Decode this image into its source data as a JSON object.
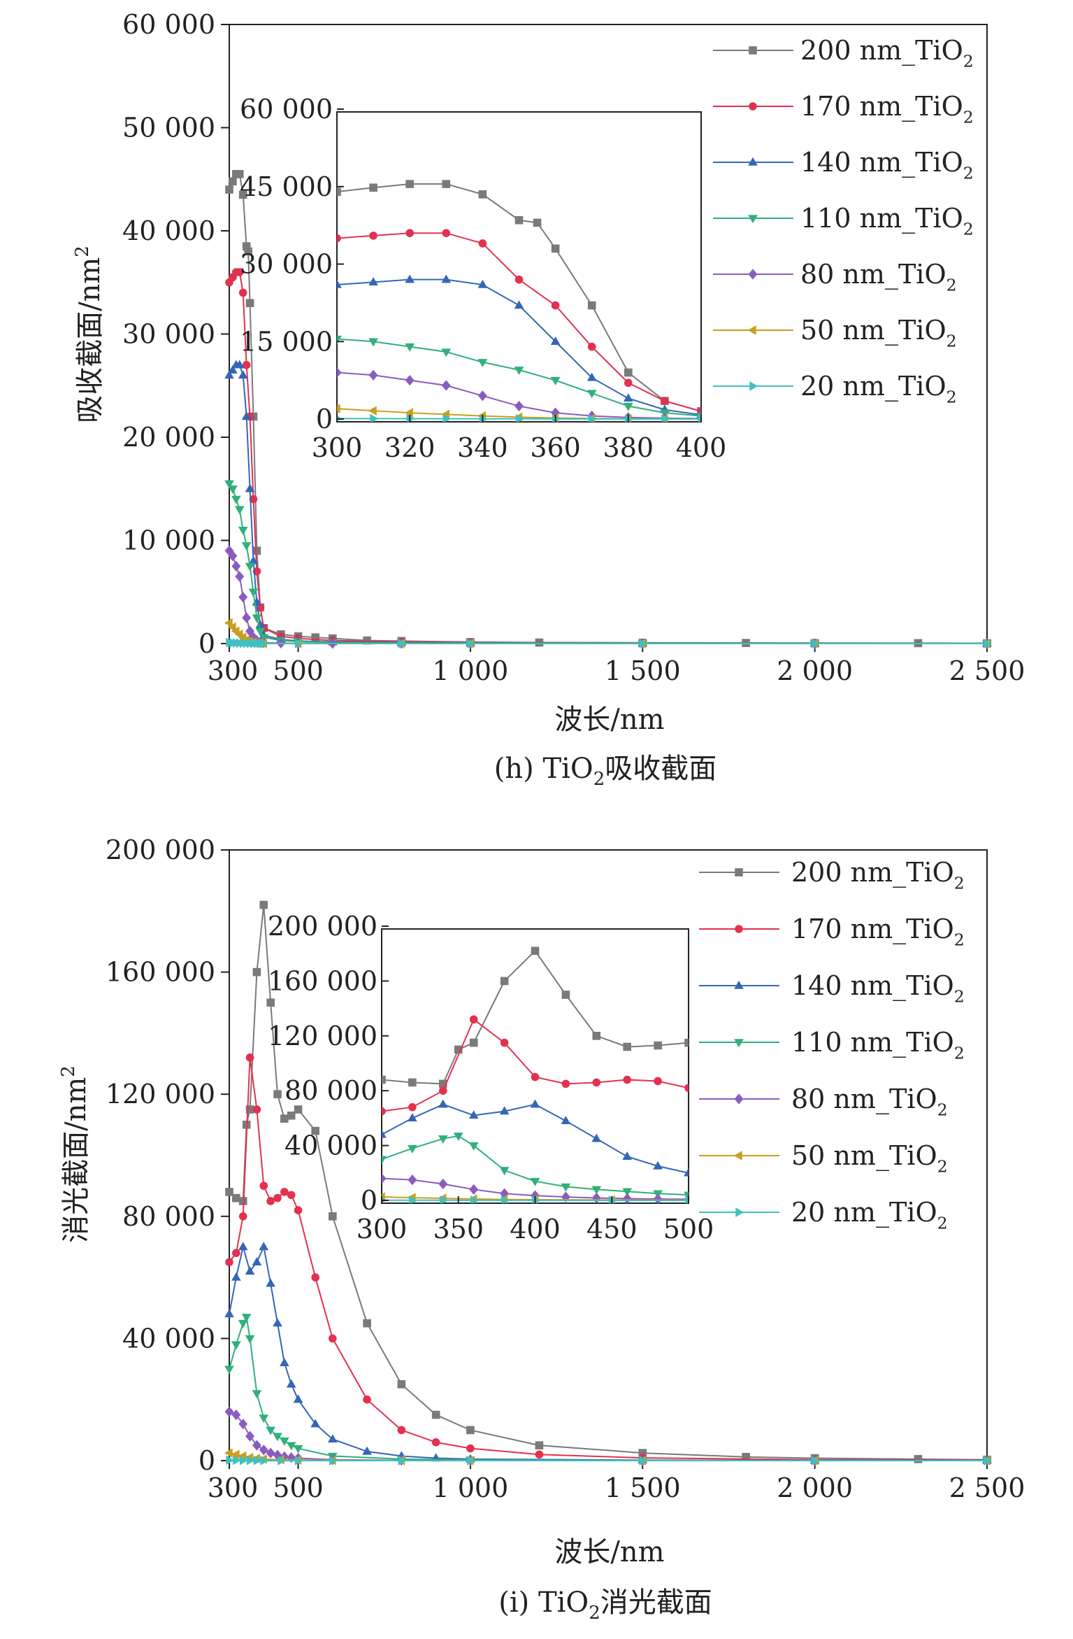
{
  "colors": {
    "200 nm": "#7a7a7a",
    "170 nm": "#e3314f",
    "140 nm": "#3466b8",
    "110 nm": "#30b07a",
    "80 nm": "#8a5cc0",
    "50 nm": "#c8a020",
    "20 nm": "#40c0c0"
  },
  "chart_data": [
    {
      "type": "line",
      "panel": "h",
      "title": "(h) TiO",
      "title_sub": "2",
      "title_suffix": "吸收截面",
      "xlabel": "波长/nm",
      "ylabel": "吸收截面/nm",
      "ylabel_sup": "2",
      "xlim": [
        300,
        2500
      ],
      "ylim": [
        0,
        60000
      ],
      "xticks": [
        300,
        500,
        1000,
        1500,
        2000,
        2500
      ],
      "xtick_labels": [
        "300",
        "500",
        "1 000",
        "1 500",
        "2 000",
        "2 500"
      ],
      "yticks": [
        0,
        10000,
        20000,
        30000,
        40000,
        50000,
        60000
      ],
      "ytick_labels": [
        "0",
        "10 000",
        "20 000",
        "30 000",
        "40 000",
        "50 000",
        "60 000"
      ],
      "legend": [
        "200 nm_TiO2",
        "170 nm_TiO2",
        "140 nm_TiO2",
        "110 nm_TiO2",
        "80 nm_TiO2",
        "50 nm_TiO2",
        "20 nm_TiO2"
      ],
      "legend_labels": [
        {
          "main": "200 nm_TiO",
          "sub": "2"
        },
        {
          "main": "170 nm_TiO",
          "sub": "2"
        },
        {
          "main": "140 nm_TiO",
          "sub": "2"
        },
        {
          "main": "110 nm_TiO",
          "sub": "2"
        },
        {
          "main": "80 nm_TiO",
          "sub": "2"
        },
        {
          "main": "50 nm_TiO",
          "sub": "2"
        },
        {
          "main": "20 nm_TiO",
          "sub": "2"
        }
      ],
      "legend_position": "top-right",
      "series": [
        {
          "name": "200 nm_TiO2",
          "x": [
            300,
            310,
            320,
            330,
            340,
            350,
            355,
            360,
            370,
            380,
            390,
            400,
            450,
            500,
            550,
            600,
            700,
            800,
            1000,
            1200,
            1500,
            1800,
            2000,
            2300,
            2500
          ],
          "y": [
            44000,
            44800,
            45500,
            45500,
            43500,
            38500,
            38000,
            33000,
            22000,
            9000,
            3500,
            1500,
            900,
            700,
            600,
            500,
            300,
            250,
            150,
            100,
            80,
            60,
            50,
            40,
            30
          ]
        },
        {
          "name": "170 nm_TiO2",
          "x": [
            300,
            310,
            320,
            330,
            340,
            350,
            360,
            370,
            380,
            390,
            400,
            450,
            500,
            600,
            800,
            1000,
            1500,
            2000,
            2500
          ],
          "y": [
            35000,
            35500,
            36000,
            36000,
            34000,
            27000,
            22000,
            14000,
            7000,
            3500,
            1500,
            700,
            500,
            300,
            150,
            100,
            60,
            40,
            30
          ]
        },
        {
          "name": "140 nm_TiO2",
          "x": [
            300,
            310,
            320,
            330,
            340,
            350,
            360,
            370,
            380,
            390,
            400,
            450,
            500,
            600,
            800,
            1000,
            1500,
            2000,
            2500
          ],
          "y": [
            26000,
            26500,
            27000,
            27000,
            26000,
            22000,
            15000,
            8000,
            4000,
            1800,
            800,
            400,
            250,
            150,
            80,
            50,
            30,
            20,
            10
          ]
        },
        {
          "name": "110 nm_TiO2",
          "x": [
            300,
            310,
            320,
            330,
            340,
            350,
            360,
            370,
            380,
            390,
            400,
            450,
            500,
            600,
            800,
            1000,
            1500,
            2000,
            2500
          ],
          "y": [
            15500,
            15000,
            14000,
            13000,
            11000,
            9500,
            7500,
            5000,
            2500,
            1200,
            600,
            300,
            200,
            100,
            50,
            30,
            20,
            10,
            5
          ]
        },
        {
          "name": "80 nm_TiO2",
          "x": [
            300,
            310,
            320,
            330,
            340,
            350,
            360,
            370,
            380,
            390,
            400,
            450,
            500,
            600,
            800,
            1000,
            1500,
            2000,
            2500
          ],
          "y": [
            9000,
            8500,
            7500,
            6500,
            4500,
            2500,
            1200,
            600,
            300,
            150,
            80,
            40,
            20,
            10,
            5,
            3,
            2,
            1,
            1
          ]
        },
        {
          "name": "50 nm_TiO2",
          "x": [
            300,
            310,
            320,
            330,
            340,
            350,
            360,
            370,
            380,
            390,
            400,
            500,
            800,
            1000,
            1500,
            2000,
            2500
          ],
          "y": [
            2000,
            1600,
            1200,
            900,
            600,
            350,
            200,
            100,
            50,
            20,
            10,
            5,
            2,
            1,
            1,
            0,
            0
          ]
        },
        {
          "name": "20 nm_TiO2",
          "x": [
            300,
            310,
            320,
            330,
            340,
            350,
            360,
            370,
            380,
            390,
            400,
            500,
            800,
            1000,
            1500,
            2000,
            2500
          ],
          "y": [
            100,
            80,
            60,
            50,
            40,
            30,
            20,
            10,
            5,
            3,
            2,
            1,
            0,
            0,
            0,
            0,
            0
          ]
        }
      ],
      "inset": {
        "xlim": [
          300,
          400
        ],
        "ylim": [
          0,
          60000
        ],
        "xticks": [
          300,
          320,
          340,
          360,
          380,
          400
        ],
        "xtick_labels": [
          "300",
          "320",
          "340",
          "360",
          "380",
          "400"
        ],
        "yticks": [
          0,
          15000,
          30000,
          45000,
          60000
        ],
        "ytick_labels": [
          "0",
          "15 000",
          "30 000",
          "45 000",
          "60 000"
        ]
      }
    },
    {
      "type": "line",
      "panel": "i",
      "title": "(i) TiO",
      "title_sub": "2",
      "title_suffix": "消光截面",
      "xlabel": "波长/nm",
      "ylabel": "消光截面/nm",
      "ylabel_sup": "2",
      "xlim": [
        300,
        2500
      ],
      "ylim": [
        0,
        200000
      ],
      "xticks": [
        300,
        500,
        1000,
        1500,
        2000,
        2500
      ],
      "xtick_labels": [
        "300",
        "500",
        "1 000",
        "1 500",
        "2 000",
        "2 500"
      ],
      "yticks": [
        0,
        40000,
        80000,
        120000,
        160000,
        200000
      ],
      "ytick_labels": [
        "0",
        "40 000",
        "80 000",
        "120 000",
        "160 000",
        "200 000"
      ],
      "legend": [
        "200 nm_TiO2",
        "170 nm_TiO2",
        "140 nm_TiO2",
        "110 nm_TiO2",
        "80 nm_TiO2",
        "50 nm_TiO2",
        "20 nm_TiO2"
      ],
      "legend_labels": [
        {
          "main": "200 nm_TiO",
          "sub": "2"
        },
        {
          "main": "170 nm_TiO",
          "sub": "2"
        },
        {
          "main": "140 nm_TiO",
          "sub": "2"
        },
        {
          "main": "110 nm_TiO",
          "sub": "2"
        },
        {
          "main": "80 nm_TiO",
          "sub": "2"
        },
        {
          "main": "50 nm_TiO",
          "sub": "2"
        },
        {
          "main": "20 nm_TiO",
          "sub": "2"
        }
      ],
      "legend_position": "top-right",
      "series": [
        {
          "name": "200 nm_TiO2",
          "x": [
            300,
            320,
            340,
            350,
            360,
            380,
            400,
            420,
            440,
            460,
            480,
            500,
            550,
            600,
            700,
            800,
            900,
            1000,
            1200,
            1500,
            1800,
            2000,
            2300,
            2500
          ],
          "y": [
            88000,
            86000,
            85000,
            110000,
            115000,
            160000,
            182000,
            150000,
            120000,
            112000,
            113000,
            115000,
            108000,
            80000,
            45000,
            25000,
            15000,
            10000,
            5000,
            2500,
            1200,
            800,
            500,
            300
          ]
        },
        {
          "name": "170 nm_TiO2",
          "x": [
            300,
            320,
            340,
            360,
            380,
            400,
            420,
            440,
            460,
            480,
            500,
            550,
            600,
            700,
            800,
            900,
            1000,
            1200,
            1500,
            2000,
            2500
          ],
          "y": [
            65000,
            68000,
            80000,
            132000,
            115000,
            90000,
            85000,
            86000,
            88000,
            87000,
            82000,
            60000,
            40000,
            20000,
            10000,
            6000,
            4000,
            2000,
            900,
            300,
            150
          ]
        },
        {
          "name": "140 nm_TiO2",
          "x": [
            300,
            320,
            340,
            360,
            380,
            400,
            420,
            440,
            460,
            480,
            500,
            550,
            600,
            700,
            800,
            900,
            1000,
            1500,
            2000,
            2500
          ],
          "y": [
            48000,
            60000,
            70000,
            62000,
            65000,
            70000,
            58000,
            45000,
            32000,
            25000,
            20000,
            12000,
            7000,
            3000,
            1500,
            800,
            500,
            150,
            50,
            20
          ]
        },
        {
          "name": "110 nm_TiO2",
          "x": [
            300,
            320,
            340,
            350,
            360,
            380,
            400,
            420,
            440,
            460,
            480,
            500,
            600,
            800,
            1000,
            1500,
            2000,
            2500
          ],
          "y": [
            30000,
            38000,
            45000,
            47000,
            40000,
            22000,
            14000,
            10000,
            8000,
            6500,
            5000,
            4000,
            1500,
            500,
            200,
            50,
            20,
            10
          ]
        },
        {
          "name": "80 nm_TiO2",
          "x": [
            300,
            320,
            340,
            360,
            380,
            400,
            420,
            440,
            460,
            480,
            500,
            600,
            800,
            1000,
            1500,
            2000,
            2500
          ],
          "y": [
            16000,
            15000,
            12000,
            8000,
            5000,
            3500,
            2500,
            1800,
            1300,
            1000,
            800,
            300,
            100,
            40,
            10,
            5,
            2
          ]
        },
        {
          "name": "50 nm_TiO2",
          "x": [
            300,
            320,
            340,
            360,
            380,
            400,
            450,
            500,
            600,
            800,
            1000,
            1500,
            2000,
            2500
          ],
          "y": [
            2500,
            2000,
            1500,
            1000,
            700,
            500,
            300,
            200,
            80,
            30,
            10,
            5,
            2,
            1
          ]
        },
        {
          "name": "20 nm_TiO2",
          "x": [
            300,
            320,
            340,
            360,
            380,
            400,
            450,
            500,
            600,
            800,
            1000,
            1500,
            2000,
            2500
          ],
          "y": [
            150,
            120,
            100,
            80,
            60,
            40,
            20,
            10,
            5,
            2,
            1,
            0,
            0,
            0
          ]
        }
      ],
      "inset": {
        "xlim": [
          300,
          500
        ],
        "ylim": [
          0,
          200000
        ],
        "xticks": [
          300,
          350,
          400,
          450,
          500
        ],
        "xtick_labels": [
          "300",
          "350",
          "400",
          "450",
          "500"
        ],
        "yticks": [
          0,
          40000,
          80000,
          120000,
          160000,
          200000
        ],
        "ytick_labels": [
          "0",
          "40 000",
          "80 000",
          "120 000",
          "160 000",
          "200 000"
        ]
      }
    }
  ]
}
